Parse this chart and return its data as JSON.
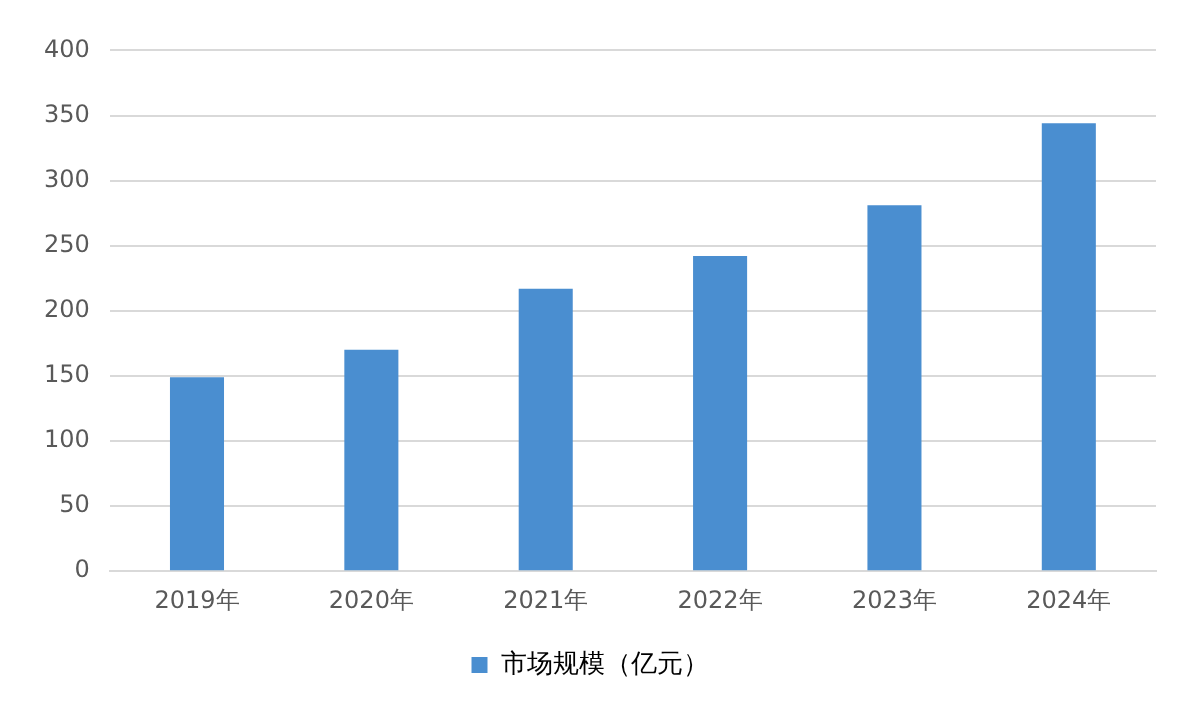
{
  "chart_data": {
    "type": "bar",
    "categories": [
      "2019年",
      "2020年",
      "2021年",
      "2022年",
      "2023年",
      "2024年"
    ],
    "series": [
      {
        "name": "市场规模（亿元）",
        "color": "#4a8ed0",
        "values": [
          149,
          170,
          217,
          242,
          281,
          344
        ]
      }
    ],
    "ylim": [
      0,
      400
    ],
    "yticks": [
      0,
      50,
      100,
      150,
      200,
      250,
      300,
      350,
      400
    ],
    "grid": "y",
    "legend": "bottom"
  }
}
